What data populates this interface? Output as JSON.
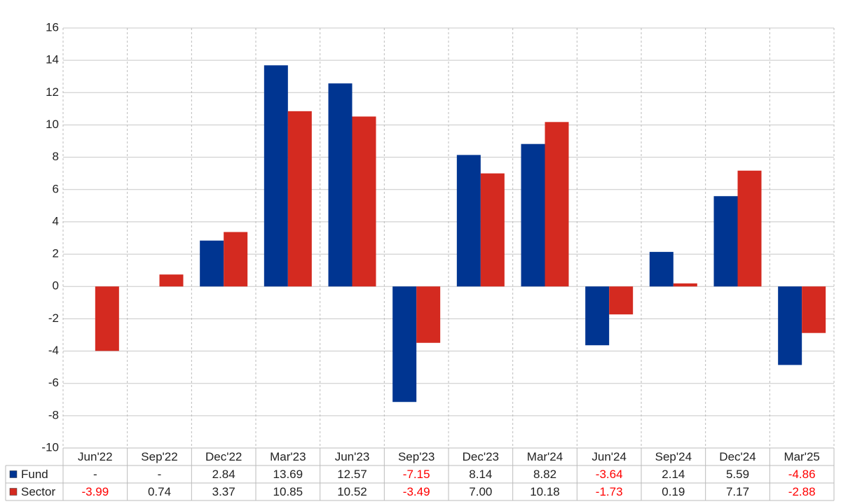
{
  "chart_data": {
    "type": "bar",
    "categories": [
      "Jun'22",
      "Sep'22",
      "Dec'22",
      "Mar'23",
      "Jun'23",
      "Sep'23",
      "Dec'23",
      "Mar'24",
      "Jun'24",
      "Sep'24",
      "Dec'24",
      "Mar'25"
    ],
    "series": [
      {
        "name": "Fund",
        "color": "#003591",
        "values": [
          null,
          null,
          2.84,
          13.69,
          12.57,
          -7.15,
          8.14,
          8.82,
          -3.64,
          2.14,
          5.59,
          -4.86
        ],
        "value_labels": [
          "-",
          "-",
          "2.84",
          "13.69",
          "12.57",
          "-7.15",
          "8.14",
          "8.82",
          "-3.64",
          "2.14",
          "5.59",
          "-4.86"
        ]
      },
      {
        "name": "Sector",
        "color": "#d42a20",
        "values": [
          -3.99,
          0.74,
          3.37,
          10.85,
          10.52,
          -3.49,
          7.0,
          10.18,
          -1.73,
          0.19,
          7.17,
          -2.88
        ],
        "value_labels": [
          "-3.99",
          "0.74",
          "3.37",
          "10.85",
          "10.52",
          "-3.49",
          "7.00",
          "10.18",
          "-1.73",
          "0.19",
          "7.17",
          "-2.88"
        ]
      }
    ],
    "ylim": [
      -10,
      16
    ],
    "yticks": [
      16,
      14,
      12,
      10,
      8,
      6,
      4,
      2,
      0,
      -2,
      -4,
      -6,
      -8,
      -10
    ],
    "grid": true,
    "negative_label_color": "#ff0000"
  }
}
